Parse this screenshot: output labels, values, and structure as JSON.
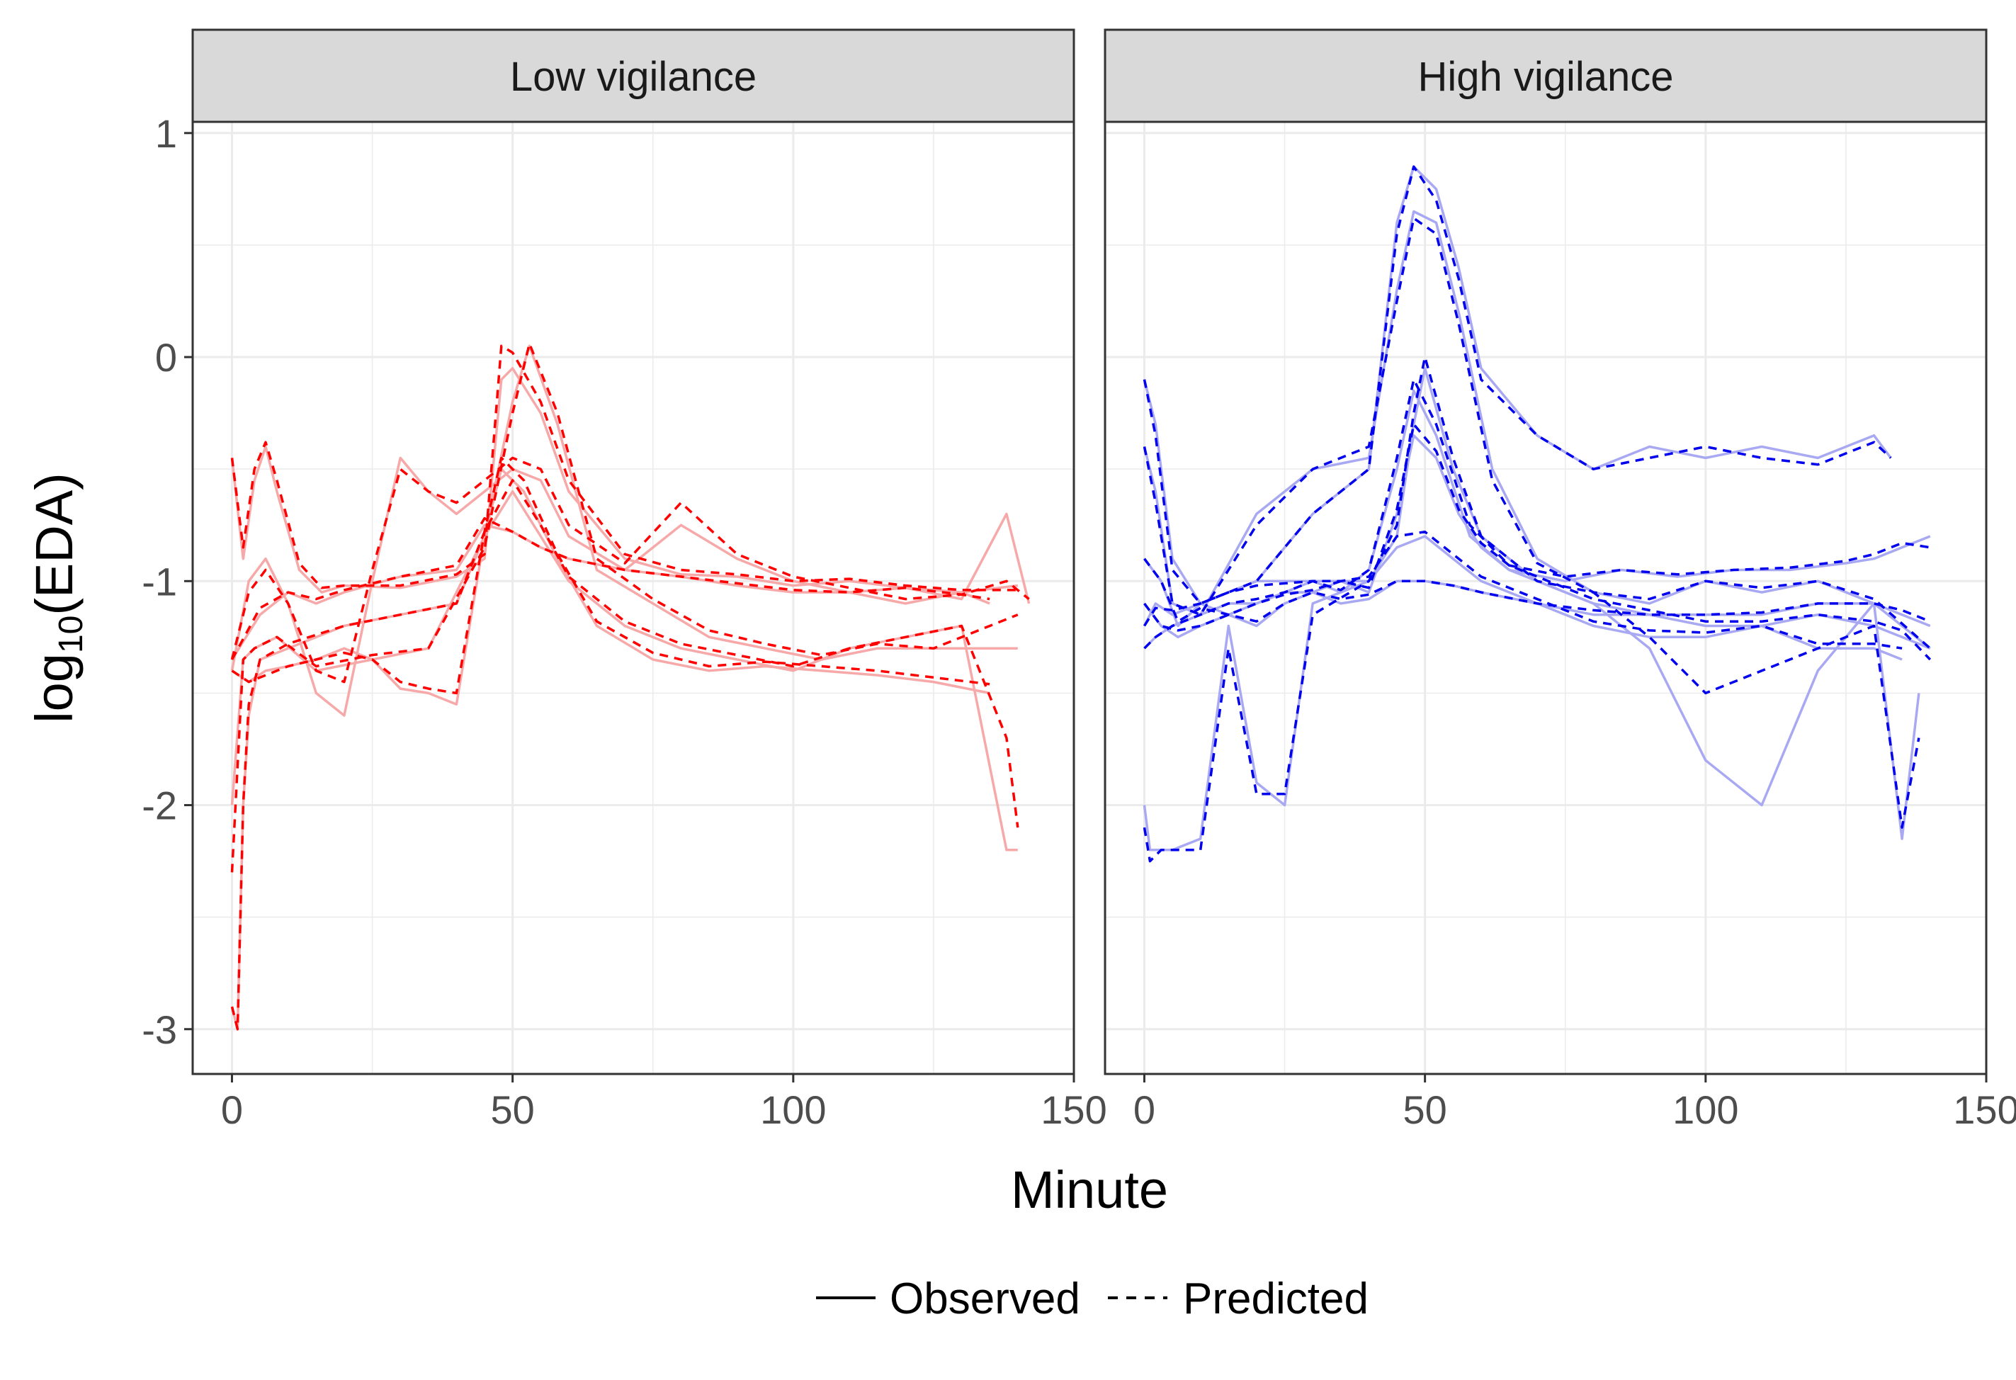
{
  "chart_data": {
    "type": "line",
    "xlabel": "Minute",
    "ylabel_main": "log",
    "ylabel_sub": "10",
    "ylabel_rest": "(EDA)",
    "xlim": [
      -7,
      150
    ],
    "ylim": [
      -3.2,
      1.05
    ],
    "x_ticks": [
      0,
      50,
      100,
      150
    ],
    "x_tick_labels": [
      "0",
      "50",
      "100",
      "150"
    ],
    "y_ticks": [
      1,
      0,
      -1,
      -2,
      -3
    ],
    "y_tick_labels": [
      "1",
      "0",
      "-1",
      "-2",
      "-3"
    ],
    "legend": {
      "position": "bottom",
      "items": [
        {
          "label": "Observed",
          "dash": "solid"
        },
        {
          "label": "Predicted",
          "dash": "dashed"
        }
      ]
    },
    "panels": [
      {
        "title": "Low vigilance",
        "observed_color": "#f7a8a8",
        "predicted_color": "#ff0000",
        "series": [
          {
            "x": [
              0,
              2,
              4,
              6,
              8,
              12,
              16,
              20,
              30,
              40,
              45,
              48,
              50,
              55,
              60,
              70,
              80,
              90,
              100,
              110,
              120,
              130,
              140
            ],
            "observed": [
              -0.45,
              -0.9,
              -0.55,
              -0.4,
              -0.6,
              -0.95,
              -1.05,
              -1.02,
              -1.03,
              -0.98,
              -0.9,
              -0.1,
              -0.05,
              -0.25,
              -0.6,
              -0.9,
              -0.97,
              -0.98,
              -1.02,
              -1.0,
              -1.03,
              -1.05,
              -1.02
            ],
            "predicted": [
              -0.45,
              -0.85,
              -0.5,
              -0.38,
              -0.55,
              -0.92,
              -1.03,
              -1.02,
              -1.02,
              -0.97,
              -0.88,
              0.05,
              0.02,
              -0.2,
              -0.55,
              -0.88,
              -0.95,
              -0.97,
              -1.0,
              -0.99,
              -1.02,
              -1.04,
              -1.04
            ]
          },
          {
            "x": [
              0,
              2,
              4,
              8,
              15,
              25,
              35,
              45,
              50,
              53,
              58,
              65,
              75,
              85,
              95,
              105,
              115,
              125,
              140
            ],
            "observed": [
              -2.0,
              -1.35,
              -1.3,
              -1.25,
              -1.4,
              -1.35,
              -1.3,
              -0.8,
              -0.2,
              0.05,
              -0.3,
              -0.95,
              -1.1,
              -1.25,
              -1.3,
              -1.35,
              -1.3,
              -1.3,
              -1.3
            ],
            "predicted": [
              -2.3,
              -1.35,
              -1.3,
              -1.25,
              -1.38,
              -1.33,
              -1.3,
              -0.85,
              -0.25,
              0.06,
              -0.25,
              -0.9,
              -1.08,
              -1.22,
              -1.28,
              -1.33,
              -1.28,
              -1.3,
              -1.15
            ]
          },
          {
            "x": [
              0,
              1,
              2,
              3,
              5,
              10,
              20,
              30,
              40,
              45,
              50,
              55,
              60,
              70,
              80,
              90,
              100,
              110,
              120,
              130,
              138,
              140
            ],
            "observed": [
              -2.9,
              -3.0,
              -2.0,
              -1.6,
              -1.35,
              -1.3,
              -1.2,
              -1.15,
              -1.1,
              -0.8,
              -0.6,
              -0.8,
              -1.0,
              -1.2,
              -1.3,
              -1.35,
              -1.4,
              -1.3,
              -1.25,
              -1.2,
              -2.2,
              -2.2
            ],
            "predicted": [
              -2.9,
              -3.0,
              -2.0,
              -1.55,
              -1.35,
              -1.28,
              -1.2,
              -1.15,
              -1.1,
              -0.78,
              -0.55,
              -0.75,
              -0.98,
              -1.18,
              -1.28,
              -1.33,
              -1.38,
              -1.3,
              -1.25,
              -1.2,
              -1.7,
              -2.1
            ]
          },
          {
            "x": [
              0,
              3,
              6,
              10,
              15,
              20,
              25,
              30,
              35,
              40,
              45,
              50,
              55,
              60,
              70,
              80,
              90,
              100,
              110,
              120,
              130,
              135
            ],
            "observed": [
              -1.4,
              -1.0,
              -0.9,
              -1.1,
              -1.5,
              -1.6,
              -1.0,
              -0.45,
              -0.6,
              -0.7,
              -0.6,
              -0.5,
              -0.55,
              -0.8,
              -0.95,
              -0.75,
              -0.9,
              -1.0,
              -1.05,
              -1.1,
              -1.05,
              -1.1
            ],
            "predicted": [
              -1.35,
              -1.05,
              -0.95,
              -1.1,
              -1.4,
              -1.45,
              -0.95,
              -0.5,
              -0.6,
              -0.65,
              -0.55,
              -0.45,
              -0.5,
              -0.75,
              -0.92,
              -0.65,
              -0.88,
              -0.98,
              -1.03,
              -1.08,
              -1.06,
              -1.08
            ]
          },
          {
            "x": [
              0,
              3,
              6,
              10,
              15,
              20,
              25,
              30,
              35,
              40,
              45,
              48,
              52,
              58,
              65,
              75,
              85,
              95,
              105,
              115,
              125,
              135
            ],
            "observed": [
              -1.4,
              -1.45,
              -1.4,
              -1.38,
              -1.35,
              -1.3,
              -1.35,
              -1.48,
              -1.5,
              -1.55,
              -0.8,
              -0.5,
              -0.6,
              -0.9,
              -1.2,
              -1.35,
              -1.4,
              -1.38,
              -1.4,
              -1.42,
              -1.45,
              -1.5
            ],
            "predicted": [
              -1.4,
              -1.45,
              -1.42,
              -1.38,
              -1.35,
              -1.32,
              -1.35,
              -1.45,
              -1.48,
              -1.5,
              -0.78,
              -0.45,
              -0.55,
              -0.88,
              -1.18,
              -1.32,
              -1.38,
              -1.36,
              -1.38,
              -1.4,
              -1.43,
              -1.46
            ]
          },
          {
            "x": [
              0,
              5,
              10,
              15,
              20,
              30,
              40,
              45,
              50,
              55,
              60,
              70,
              80,
              90,
              100,
              110,
              120,
              130,
              138,
              142
            ],
            "observed": [
              -1.35,
              -1.15,
              -1.05,
              -1.1,
              -1.05,
              -0.98,
              -0.95,
              -0.75,
              -0.78,
              -0.85,
              -0.9,
              -0.95,
              -0.98,
              -1.02,
              -1.05,
              -1.05,
              -1.03,
              -1.08,
              -0.7,
              -1.1
            ],
            "predicted": [
              -1.35,
              -1.12,
              -1.05,
              -1.08,
              -1.04,
              -0.98,
              -0.93,
              -0.72,
              -0.78,
              -0.85,
              -0.9,
              -0.95,
              -0.98,
              -1.01,
              -1.04,
              -1.05,
              -1.03,
              -1.06,
              -1.0,
              -1.08
            ]
          }
        ]
      },
      {
        "title": "High vigilance",
        "observed_color": "#a9a9f3",
        "predicted_color": "#0000ee",
        "series": [
          {
            "x": [
              0,
              2,
              5,
              10,
              20,
              30,
              40,
              45,
              48,
              52,
              56,
              60,
              70,
              80,
              90,
              100,
              110,
              120,
              130,
              133
            ],
            "observed": [
              -0.1,
              -0.3,
              -0.9,
              -1.1,
              -1.0,
              -0.7,
              -0.5,
              0.6,
              0.85,
              0.75,
              0.4,
              -0.05,
              -0.35,
              -0.5,
              -0.4,
              -0.45,
              -0.4,
              -0.45,
              -0.35,
              -0.45
            ],
            "predicted": [
              -0.1,
              -0.35,
              -0.95,
              -1.1,
              -1.0,
              -0.7,
              -0.5,
              0.55,
              0.85,
              0.7,
              0.35,
              -0.1,
              -0.35,
              -0.5,
              -0.45,
              -0.4,
              -0.45,
              -0.48,
              -0.38,
              -0.45
            ]
          },
          {
            "x": [
              0,
              2,
              5,
              10,
              20,
              30,
              40,
              45,
              48,
              52,
              56,
              62,
              70,
              80,
              90,
              100,
              110,
              120,
              130,
              140
            ],
            "observed": [
              -0.4,
              -0.6,
              -1.1,
              -1.15,
              -0.7,
              -0.5,
              -0.45,
              0.3,
              0.65,
              0.6,
              0.2,
              -0.5,
              -0.9,
              -1.05,
              -1.1,
              -1.0,
              -1.05,
              -1.0,
              -1.1,
              -1.3
            ],
            "predicted": [
              -0.4,
              -0.65,
              -1.1,
              -1.15,
              -0.75,
              -0.5,
              -0.4,
              0.25,
              0.62,
              0.55,
              0.15,
              -0.55,
              -0.92,
              -1.05,
              -1.08,
              -1.0,
              -1.03,
              -1.0,
              -1.08,
              -1.3
            ]
          },
          {
            "x": [
              0,
              1,
              3,
              5,
              10,
              15,
              20,
              25,
              30,
              40,
              45,
              48,
              50,
              55,
              60,
              70,
              80,
              90,
              100,
              110,
              120,
              130,
              135,
              138
            ],
            "observed": [
              -2.0,
              -2.2,
              -2.2,
              -2.2,
              -2.15,
              -1.2,
              -1.9,
              -2.0,
              -1.1,
              -1.0,
              -0.8,
              -0.3,
              -0.05,
              -0.5,
              -0.8,
              -1.0,
              -1.1,
              -1.3,
              -1.8,
              -2.0,
              -1.4,
              -1.1,
              -2.15,
              -1.5
            ],
            "predicted": [
              -2.1,
              -2.25,
              -2.2,
              -2.2,
              -2.2,
              -1.3,
              -1.95,
              -1.95,
              -1.15,
              -1.0,
              -0.75,
              -0.25,
              0.0,
              -0.45,
              -0.8,
              -1.0,
              -1.05,
              -1.25,
              -1.5,
              -1.4,
              -1.3,
              -1.2,
              -2.1,
              -1.7
            ]
          },
          {
            "x": [
              0,
              2,
              5,
              10,
              15,
              20,
              30,
              35,
              40,
              45,
              48,
              52,
              58,
              65,
              75,
              85,
              95,
              105,
              115,
              125,
              130,
              135,
              140
            ],
            "observed": [
              -1.2,
              -1.1,
              -1.15,
              -1.1,
              -1.05,
              -1.0,
              -1.0,
              -1.05,
              -0.95,
              -0.5,
              -0.15,
              -0.35,
              -0.8,
              -0.95,
              -1.0,
              -0.95,
              -0.98,
              -0.95,
              -0.95,
              -0.92,
              -0.9,
              -0.85,
              -0.8
            ],
            "predicted": [
              -1.2,
              -1.12,
              -1.13,
              -1.1,
              -1.05,
              -1.02,
              -1.0,
              -1.04,
              -0.95,
              -0.45,
              -0.1,
              -0.3,
              -0.75,
              -0.93,
              -0.98,
              -0.95,
              -0.97,
              -0.95,
              -0.94,
              -0.91,
              -0.88,
              -0.83,
              -0.85
            ]
          },
          {
            "x": [
              0,
              3,
              6,
              10,
              15,
              20,
              25,
              30,
              35,
              40,
              45,
              48,
              52,
              56,
              60,
              65,
              70,
              80,
              90,
              100,
              110,
              120,
              130,
              135,
              140
            ],
            "observed": [
              -1.1,
              -1.2,
              -1.25,
              -1.2,
              -1.15,
              -1.1,
              -1.05,
              -1.05,
              -1.0,
              -1.05,
              -0.7,
              -0.35,
              -0.45,
              -0.7,
              -0.85,
              -0.95,
              -1.0,
              -1.1,
              -1.15,
              -1.2,
              -1.2,
              -1.15,
              -1.2,
              -1.25,
              -1.3
            ],
            "predicted": [
              -1.1,
              -1.2,
              -1.22,
              -1.2,
              -1.15,
              -1.1,
              -1.06,
              -1.04,
              -1.0,
              -1.03,
              -0.68,
              -0.3,
              -0.42,
              -0.68,
              -0.83,
              -0.93,
              -0.98,
              -1.08,
              -1.13,
              -1.18,
              -1.18,
              -1.15,
              -1.18,
              -1.22,
              -1.35
            ]
          },
          {
            "x": [
              0,
              2,
              5,
              10,
              15,
              20,
              25,
              30,
              35,
              40,
              45,
              50,
              55,
              60,
              70,
              80,
              90,
              100,
              110,
              120,
              130,
              135
            ],
            "observed": [
              -1.3,
              -1.25,
              -1.2,
              -1.15,
              -1.1,
              -1.1,
              -1.05,
              -1.0,
              -1.0,
              -1.0,
              -0.85,
              -0.8,
              -0.9,
              -1.0,
              -1.1,
              -1.2,
              -1.25,
              -1.25,
              -1.2,
              -1.3,
              -1.3,
              -1.35
            ],
            "predicted": [
              -1.3,
              -1.25,
              -1.2,
              -1.15,
              -1.1,
              -1.08,
              -1.05,
              -1.0,
              -1.0,
              -0.98,
              -0.8,
              -0.78,
              -0.88,
              -0.98,
              -1.08,
              -1.18,
              -1.22,
              -1.23,
              -1.2,
              -1.28,
              -1.28,
              -1.3
            ]
          },
          {
            "x": [
              0,
              3,
              6,
              10,
              15,
              20,
              25,
              30,
              35,
              40,
              45,
              50,
              55,
              60,
              70,
              80,
              90,
              100,
              110,
              120,
              130,
              135,
              140
            ],
            "observed": [
              -0.9,
              -1.0,
              -1.2,
              -1.1,
              -1.15,
              -1.2,
              -1.1,
              -1.05,
              -1.1,
              -1.08,
              -1.0,
              -1.0,
              -1.02,
              -1.05,
              -1.1,
              -1.15,
              -1.15,
              -1.15,
              -1.15,
              -1.1,
              -1.1,
              -1.15,
              -1.2
            ],
            "predicted": [
              -0.9,
              -1.0,
              -1.18,
              -1.12,
              -1.15,
              -1.18,
              -1.1,
              -1.05,
              -1.08,
              -1.06,
              -1.0,
              -1.0,
              -1.02,
              -1.05,
              -1.1,
              -1.13,
              -1.15,
              -1.15,
              -1.14,
              -1.1,
              -1.1,
              -1.13,
              -1.18
            ]
          }
        ]
      }
    ]
  }
}
